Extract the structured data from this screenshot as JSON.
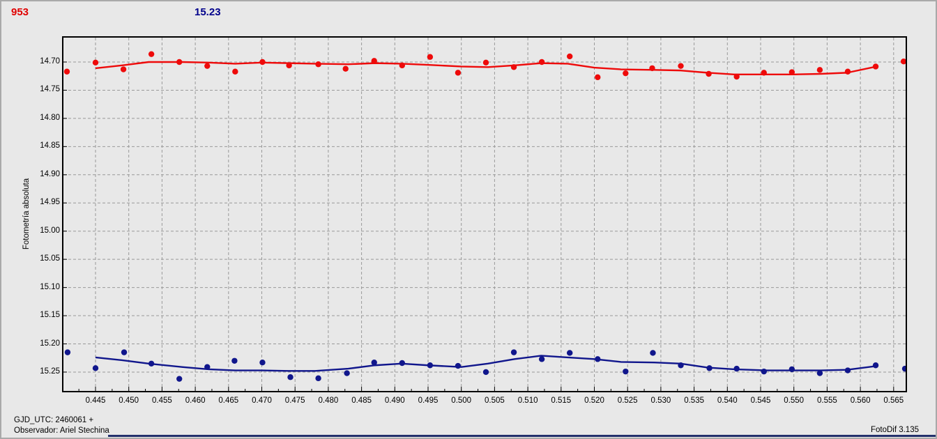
{
  "header": {
    "object_id": "953",
    "mean_value": "15.23"
  },
  "footer": {
    "gjd_line": "GJD_UTC: 2460061 +",
    "observer_line": "Observador: Ariel Stechina",
    "app_version": "FotoDif 3.135"
  },
  "colors": {
    "background": "#e8e8e8",
    "frame": "#000000",
    "grid": "#999999",
    "red_series": "#ee0a0a",
    "blue_series": "#10168c",
    "header_red": "#e00000",
    "header_navy": "#00008b",
    "bottom_strip": "#23306b"
  },
  "chart_data": {
    "type": "scatter",
    "title": "",
    "xlabel": "",
    "ylabel": "Fotometría absoluta",
    "grid": "dashed",
    "legend": "none",
    "y_axis_inverted_magnitudes": true,
    "x_tick_labels": [
      "0.445",
      "0.450",
      "0.455",
      "0.460",
      "0.465",
      "0.470",
      "0.475",
      "0.480",
      "0.485",
      "0.490",
      "0.495",
      "0.500",
      "0.505",
      "0.510",
      "0.515",
      "0.520",
      "0.525",
      "0.530",
      "0.535",
      "0.540",
      "0.545",
      "0.550",
      "0.555",
      "0.560",
      "0.565"
    ],
    "y_tick_labels": [
      "14.70",
      "14.75",
      "14.80",
      "14.85",
      "14.90",
      "14.95",
      "15.00",
      "15.05",
      "15.10",
      "15.15",
      "15.20",
      "15.25"
    ],
    "xlim": [
      0.4401,
      0.5669
    ],
    "ylim": [
      14.6555,
      15.2846
    ],
    "series": [
      {
        "name": "red-photometry",
        "color": "#ee0a0a",
        "points": [
          [
            0.4407,
            14.717
          ],
          [
            0.445,
            14.701
          ],
          [
            0.4492,
            14.713
          ],
          [
            0.4534,
            14.686
          ],
          [
            0.4576,
            14.7
          ],
          [
            0.4618,
            14.707
          ],
          [
            0.466,
            14.717
          ],
          [
            0.4701,
            14.7
          ],
          [
            0.4741,
            14.706
          ],
          [
            0.4785,
            14.704
          ],
          [
            0.4826,
            14.712
          ],
          [
            0.4869,
            14.698
          ],
          [
            0.4911,
            14.706
          ],
          [
            0.4953,
            14.691
          ],
          [
            0.4995,
            14.719
          ],
          [
            0.5037,
            14.701
          ],
          [
            0.5079,
            14.709
          ],
          [
            0.5121,
            14.7
          ],
          [
            0.5163,
            14.69
          ],
          [
            0.5205,
            14.727
          ],
          [
            0.5247,
            14.72
          ],
          [
            0.5287,
            14.711
          ],
          [
            0.533,
            14.707
          ],
          [
            0.5372,
            14.721
          ],
          [
            0.5414,
            14.726
          ],
          [
            0.5455,
            14.719
          ],
          [
            0.5497,
            14.718
          ],
          [
            0.5539,
            14.714
          ],
          [
            0.5581,
            14.717
          ],
          [
            0.5623,
            14.708
          ],
          [
            0.5665,
            14.699
          ]
        ],
        "trend": [
          [
            0.445,
            14.711
          ],
          [
            0.449,
            14.706
          ],
          [
            0.453,
            14.7
          ],
          [
            0.458,
            14.7
          ],
          [
            0.462,
            14.701
          ],
          [
            0.466,
            14.703
          ],
          [
            0.47,
            14.701
          ],
          [
            0.474,
            14.702
          ],
          [
            0.478,
            14.703
          ],
          [
            0.483,
            14.704
          ],
          [
            0.487,
            14.702
          ],
          [
            0.491,
            14.703
          ],
          [
            0.495,
            14.705
          ],
          [
            0.5,
            14.708
          ],
          [
            0.504,
            14.709
          ],
          [
            0.508,
            14.706
          ],
          [
            0.512,
            14.702
          ],
          [
            0.516,
            14.703
          ],
          [
            0.52,
            14.71
          ],
          [
            0.524,
            14.713
          ],
          [
            0.529,
            14.714
          ],
          [
            0.533,
            14.715
          ],
          [
            0.537,
            14.719
          ],
          [
            0.541,
            14.722
          ],
          [
            0.546,
            14.722
          ],
          [
            0.55,
            14.722
          ],
          [
            0.554,
            14.721
          ],
          [
            0.558,
            14.719
          ],
          [
            0.562,
            14.709
          ]
        ]
      },
      {
        "name": "blue-photometry",
        "color": "#10168c",
        "points": [
          [
            0.4408,
            15.215
          ],
          [
            0.445,
            15.243
          ],
          [
            0.4493,
            15.215
          ],
          [
            0.4534,
            15.235
          ],
          [
            0.4576,
            15.262
          ],
          [
            0.4618,
            15.241
          ],
          [
            0.4659,
            15.23
          ],
          [
            0.4701,
            15.233
          ],
          [
            0.4743,
            15.259
          ],
          [
            0.4785,
            15.261
          ],
          [
            0.4828,
            15.252
          ],
          [
            0.4869,
            15.233
          ],
          [
            0.4911,
            15.234
          ],
          [
            0.4953,
            15.238
          ],
          [
            0.4995,
            15.239
          ],
          [
            0.5037,
            15.25
          ],
          [
            0.5079,
            15.215
          ],
          [
            0.5121,
            15.227
          ],
          [
            0.5163,
            15.216
          ],
          [
            0.5205,
            15.227
          ],
          [
            0.5247,
            15.249
          ],
          [
            0.5288,
            15.216
          ],
          [
            0.533,
            15.238
          ],
          [
            0.5373,
            15.243
          ],
          [
            0.5414,
            15.244
          ],
          [
            0.5455,
            15.249
          ],
          [
            0.5497,
            15.245
          ],
          [
            0.5539,
            15.252
          ],
          [
            0.5581,
            15.247
          ],
          [
            0.5623,
            15.238
          ],
          [
            0.5667,
            15.244
          ]
        ],
        "trend": [
          [
            0.445,
            15.224
          ],
          [
            0.449,
            15.229
          ],
          [
            0.453,
            15.235
          ],
          [
            0.458,
            15.241
          ],
          [
            0.462,
            15.245
          ],
          [
            0.466,
            15.247
          ],
          [
            0.47,
            15.247
          ],
          [
            0.474,
            15.248
          ],
          [
            0.478,
            15.248
          ],
          [
            0.483,
            15.244
          ],
          [
            0.487,
            15.238
          ],
          [
            0.491,
            15.235
          ],
          [
            0.495,
            15.238
          ],
          [
            0.5,
            15.241
          ],
          [
            0.504,
            15.235
          ],
          [
            0.508,
            15.227
          ],
          [
            0.512,
            15.221
          ],
          [
            0.516,
            15.224
          ],
          [
            0.52,
            15.227
          ],
          [
            0.524,
            15.232
          ],
          [
            0.529,
            15.233
          ],
          [
            0.533,
            15.235
          ],
          [
            0.537,
            15.242
          ],
          [
            0.541,
            15.245
          ],
          [
            0.546,
            15.247
          ],
          [
            0.55,
            15.247
          ],
          [
            0.554,
            15.247
          ],
          [
            0.558,
            15.246
          ],
          [
            0.562,
            15.24
          ]
        ]
      }
    ]
  }
}
